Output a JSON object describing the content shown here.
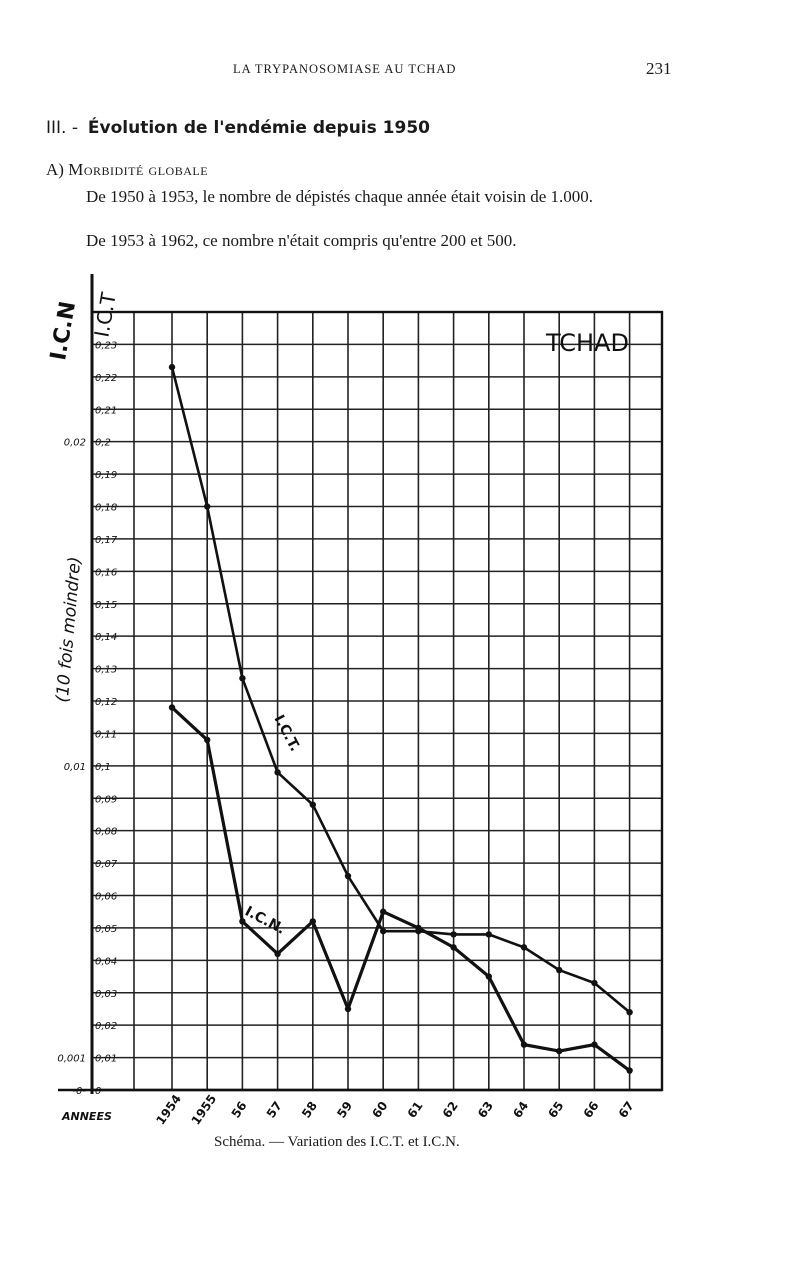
{
  "header": {
    "running_title": "LA TRYPANOSOMIASE AU TCHAD",
    "page_number": "231"
  },
  "section": {
    "number": "III. -",
    "title": "Évolution de l'endémie depuis 1950"
  },
  "subsection": {
    "letter": "A)",
    "title": "Morbidité globale"
  },
  "paragraphs": [
    "De 1950 à 1953, le nombre de dépistés chaque année était voisin de 1.000.",
    "De 1953 à 1962, ce nombre n'était compris qu'entre 200 et 500."
  ],
  "caption": "Schéma. — Variation des I.C.T. et I.C.N.",
  "chart_data": {
    "type": "line",
    "title": "TCHAD",
    "xlabel": "ANNEES",
    "left_axis_label": "I.C.N",
    "left_axis_note": "(10 fois moindre)",
    "right_axis_label": "I.C.T",
    "x_ticks": [
      "1954",
      "1955",
      "56",
      "57",
      "58",
      "59",
      "60",
      "61",
      "62",
      "63",
      "64",
      "65",
      "66",
      "67"
    ],
    "x": [
      1954,
      1955,
      1956,
      1957,
      1958,
      1959,
      1960,
      1961,
      1962,
      1963,
      1964,
      1965,
      1966,
      1967
    ],
    "ict_ticks": [
      "0",
      "0,01",
      "0,02",
      "0,03",
      "0,04",
      "0,05",
      "0,06",
      "0,07",
      "0,08",
      "0,09",
      "0,1",
      "0,11",
      "0,12",
      "0,13",
      "0,14",
      "0,15",
      "0,16",
      "0,17",
      "0,18",
      "0,19",
      "0,2",
      "0,21",
      "0,22",
      "0,23"
    ],
    "icn_ticks": [
      "-0-",
      "0,001",
      "0,01",
      "0,02"
    ],
    "ylim": [
      0,
      0.24
    ],
    "grid": true,
    "series": [
      {
        "name": "I.C.T.",
        "values": [
          0.223,
          0.18,
          0.127,
          0.098,
          0.088,
          0.066,
          0.049,
          0.049,
          0.048,
          0.048,
          0.044,
          0.037,
          0.033,
          0.024
        ]
      },
      {
        "name": "I.C.N.",
        "values": [
          0.118,
          0.108,
          0.052,
          0.042,
          0.052,
          0.025,
          0.055,
          0.05,
          0.044,
          0.035,
          0.014,
          0.012,
          0.014,
          0.006
        ]
      }
    ]
  }
}
